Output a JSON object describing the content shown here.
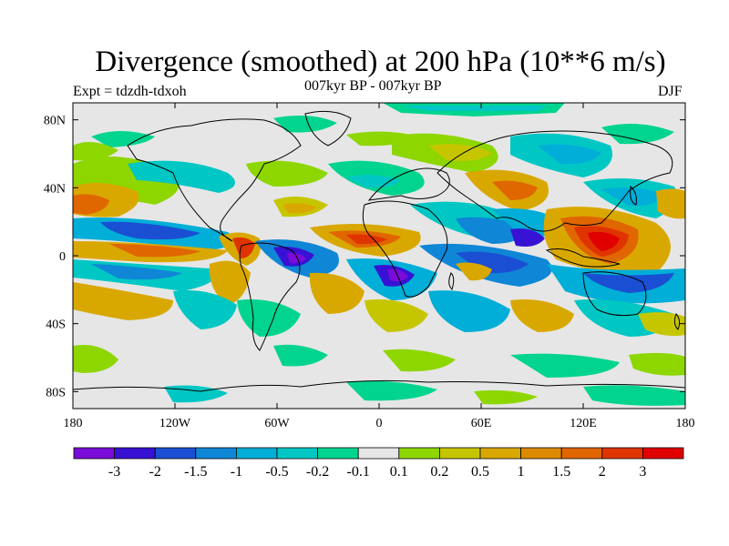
{
  "title": "Divergence (smoothed) at 200 hPa (10**6 m/s)",
  "subtitle": "007kyr BP - 007kyr BP",
  "expt": "Expt = tdzdh-tdxoh",
  "season": "DJF",
  "map": {
    "lat_ticks": [
      {
        "value": 80,
        "label": "80N"
      },
      {
        "value": 40,
        "label": "40N"
      },
      {
        "value": 0,
        "label": "0"
      },
      {
        "value": -40,
        "label": "40S"
      },
      {
        "value": -80,
        "label": "80S"
      }
    ],
    "lon_ticks": [
      {
        "value": -180,
        "label": "180"
      },
      {
        "value": -120,
        "label": "120W"
      },
      {
        "value": -60,
        "label": "60W"
      },
      {
        "value": 0,
        "label": "0"
      },
      {
        "value": 60,
        "label": "60E"
      },
      {
        "value": 120,
        "label": "120E"
      },
      {
        "value": 180,
        "label": "180"
      }
    ],
    "lon_range": [
      -180,
      180
    ],
    "lat_range": [
      -90,
      90
    ],
    "background_color": "#e6e6e6"
  },
  "colorbar": {
    "colors": [
      "#7a0bd9",
      "#3712d4",
      "#1a4fd3",
      "#0f86d6",
      "#00aed7",
      "#00c7c4",
      "#00d48e",
      "#e6e6e6",
      "#8ed600",
      "#c6c600",
      "#d9a800",
      "#de8a00",
      "#e06600",
      "#e03400",
      "#e00000"
    ],
    "labels": [
      "-3",
      "-2",
      "-1.5",
      "-1",
      "-0.5",
      "-0.2",
      "-0.1",
      "0.1",
      "0.2",
      "0.5",
      "1",
      "1.5",
      "2",
      "3"
    ]
  }
}
